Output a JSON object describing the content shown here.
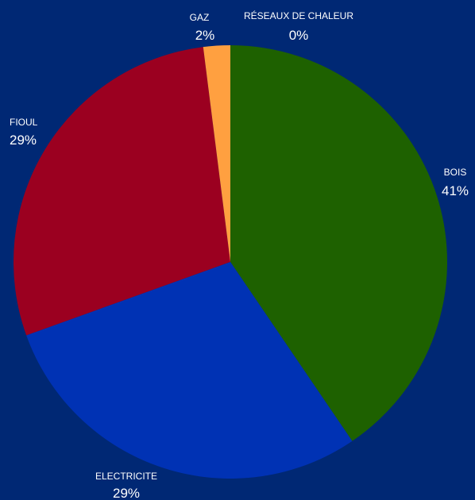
{
  "colors": {
    "background": "#002874",
    "label_text": "#ffffff"
  },
  "chart_data": {
    "type": "pie",
    "title": "",
    "start_angle_deg": 0,
    "direction": "clockwise",
    "slices": [
      {
        "label": "BOIS",
        "percent_label": "41%",
        "value": 40.5,
        "color": "#1e6100"
      },
      {
        "label": "ELECTRICITE",
        "percent_label": "29%",
        "value": 29.0,
        "color": "#0032b4"
      },
      {
        "label": "FIOUL",
        "percent_label": "29%",
        "value": 28.5,
        "color": "#9b0020"
      },
      {
        "label": "GAZ",
        "percent_label": "2%",
        "value": 2.0,
        "color": "#ffa040"
      },
      {
        "label": "RÉSEAUX DE  CHALEUR",
        "percent_label": "0%",
        "value": 0.0,
        "color": "#3c8cd2"
      }
    ]
  }
}
